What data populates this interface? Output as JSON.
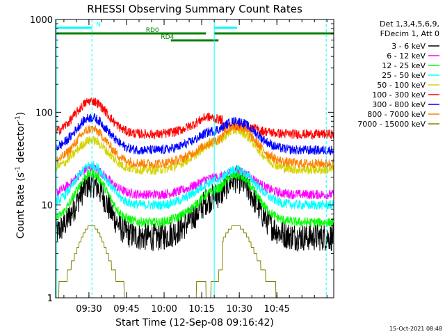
{
  "chart_data": {
    "type": "line",
    "title": "RHESSI Observing Summary Count Rates",
    "xlabel": "Start Time (12-Sep-08 09:16:42)",
    "ylabel_main": "Count Rate (s",
    "ylabel_sup1": "-1",
    "ylabel_mid": " detector",
    "ylabel_sup2": "-1",
    "ylabel_end": ")",
    "y_scale": "log",
    "ylim": [
      1,
      1000
    ],
    "y_ticks": [
      "1",
      "10",
      "100",
      "1000"
    ],
    "x_range_min": [
      0,
      111
    ],
    "x_ticks": [
      {
        "label": "09:30",
        "min": 13.3
      },
      {
        "label": "09:45",
        "min": 28.3
      },
      {
        "label": "10:00",
        "min": 43.3
      },
      {
        "label": "10:15",
        "min": 58.3
      },
      {
        "label": "10:30",
        "min": 73.3
      },
      {
        "label": "10:45",
        "min": 88.3
      }
    ],
    "legend_placement": "right",
    "legend_header": [
      "Det 1,3,4,5,6,9,",
      "FDecim 1, Att 0"
    ],
    "series": [
      {
        "name": "3 - 6 keV",
        "color": "#000000",
        "night": 4.5,
        "peak1": 17,
        "peak2": 19,
        "gap": 11
      },
      {
        "name": "6 - 12 keV",
        "color": "#ff00ff",
        "night": 13,
        "peak1": 25,
        "peak2": 23,
        "gap": 19
      },
      {
        "name": "12 - 25 keV",
        "color": "#00ff00",
        "night": 6.5,
        "peak1": 22,
        "peak2": 21,
        "gap": 13
      },
      {
        "name": "25 - 50 keV",
        "color": "#00ffff",
        "night": 10,
        "peak1": 27,
        "peak2": 24,
        "gap": 17
      },
      {
        "name": "50 - 100 keV",
        "color": "#d4d400",
        "night": 24,
        "peak1": 50,
        "peak2": 64,
        "gap": 44
      },
      {
        "name": "100 - 300 keV",
        "color": "#ff0000",
        "night": 58,
        "peak1": 133,
        "peak2": 72,
        "gap": 90
      },
      {
        "name": "300 - 800 keV",
        "color": "#0000ff",
        "night": 39,
        "peak1": 88,
        "peak2": 80,
        "gap": 60
      },
      {
        "name": "800 - 7000 keV",
        "color": "#ff8000",
        "night": 28,
        "peak1": 66,
        "peak2": 70,
        "gap": 45
      },
      {
        "name": "7000 - 15000 keV",
        "color": "#808000",
        "night": 1,
        "peak1": 6,
        "peak2": 6,
        "gap": 1
      }
    ],
    "flag_bars": [
      {
        "label": "N",
        "color": "#00ffff",
        "segments": [
          [
            0,
            14.5
          ],
          [
            63.3,
            72.4
          ]
        ]
      },
      {
        "label": "RD0",
        "color": "#008000",
        "segments": [
          [
            0,
            60
          ],
          [
            63.3,
            111
          ]
        ]
      },
      {
        "label": "RD4",
        "color": "#008000",
        "segments": [
          [
            46,
            65
          ]
        ]
      }
    ],
    "footer_date": "15-Oct-2021 08:48"
  }
}
